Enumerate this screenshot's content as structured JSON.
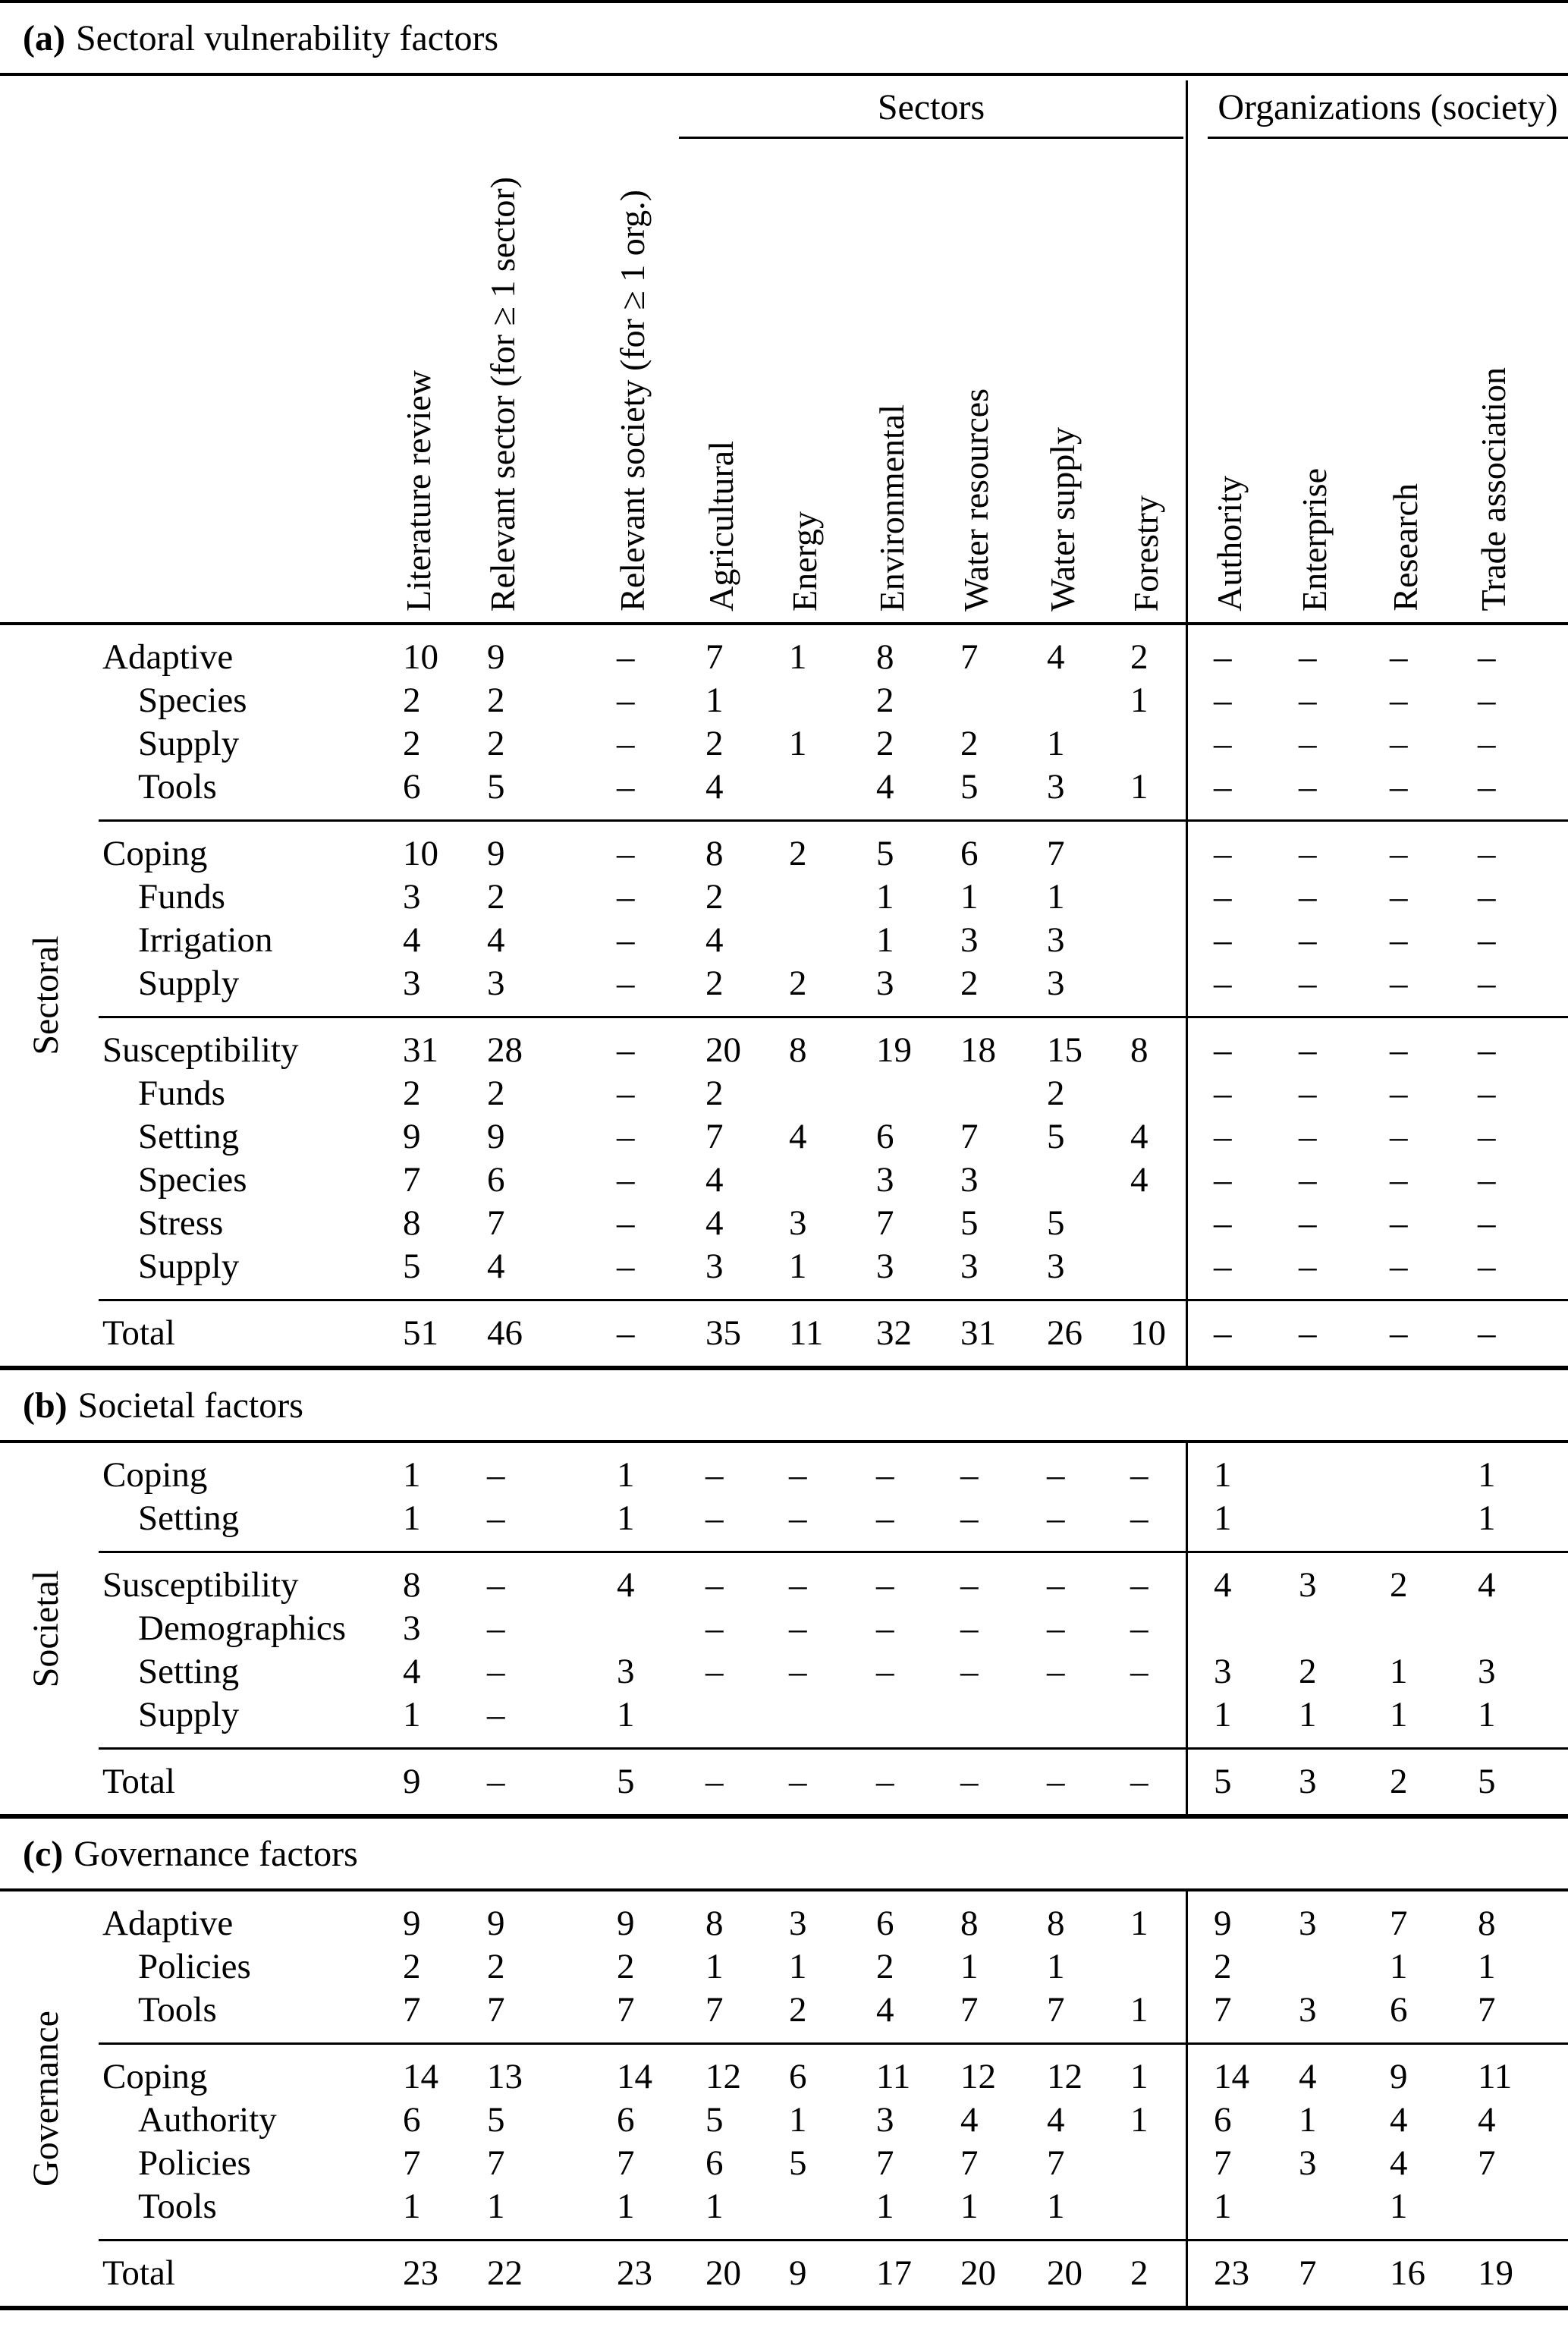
{
  "colors": {
    "text": "#000000",
    "background": "#ffffff",
    "rule": "#000000"
  },
  "table": {
    "group_headers": [
      {
        "label": "Sectors"
      },
      {
        "label": "Organizations (society)"
      }
    ],
    "column_headers": [
      "Literature review",
      "Relevant sector (for ≥ 1 sector)",
      "Relevant society (for ≥ 1 org.)",
      "Agricultural",
      "Energy",
      "Environmental",
      "Water resources",
      "Water supply",
      "Forestry",
      "Authority",
      "Enterprise",
      "Research",
      "Trade association"
    ],
    "sections": [
      {
        "title_prefix": "(a)",
        "title": "Sectoral vulnerability factors",
        "side_label": "Sectoral",
        "blocks": [
          {
            "rows": [
              {
                "label": "Adaptive",
                "indent": false,
                "cells": [
                  "10",
                  "9",
                  "–",
                  "7",
                  "1",
                  "8",
                  "7",
                  "4",
                  "2",
                  "–",
                  "–",
                  "–",
                  "–"
                ]
              },
              {
                "label": "Species",
                "indent": true,
                "cells": [
                  "2",
                  "2",
                  "–",
                  "1",
                  "",
                  "2",
                  "",
                  "",
                  "1",
                  "–",
                  "–",
                  "–",
                  "–"
                ]
              },
              {
                "label": "Supply",
                "indent": true,
                "cells": [
                  "2",
                  "2",
                  "–",
                  "2",
                  "1",
                  "2",
                  "2",
                  "1",
                  "",
                  "–",
                  "–",
                  "–",
                  "–"
                ]
              },
              {
                "label": "Tools",
                "indent": true,
                "cells": [
                  "6",
                  "5",
                  "–",
                  "4",
                  "",
                  "4",
                  "5",
                  "3",
                  "1",
                  "–",
                  "–",
                  "–",
                  "–"
                ]
              }
            ]
          },
          {
            "rows": [
              {
                "label": "Coping",
                "indent": false,
                "cells": [
                  "10",
                  "9",
                  "–",
                  "8",
                  "2",
                  "5",
                  "6",
                  "7",
                  "",
                  "–",
                  "–",
                  "–",
                  "–"
                ]
              },
              {
                "label": "Funds",
                "indent": true,
                "cells": [
                  "3",
                  "2",
                  "–",
                  "2",
                  "",
                  "1",
                  "1",
                  "1",
                  "",
                  "–",
                  "–",
                  "–",
                  "–"
                ]
              },
              {
                "label": "Irrigation",
                "indent": true,
                "cells": [
                  "4",
                  "4",
                  "–",
                  "4",
                  "",
                  "1",
                  "3",
                  "3",
                  "",
                  "–",
                  "–",
                  "–",
                  "–"
                ]
              },
              {
                "label": "Supply",
                "indent": true,
                "cells": [
                  "3",
                  "3",
                  "–",
                  "2",
                  "2",
                  "3",
                  "2",
                  "3",
                  "",
                  "–",
                  "–",
                  "–",
                  "–"
                ]
              }
            ]
          },
          {
            "rows": [
              {
                "label": "Susceptibility",
                "indent": false,
                "cells": [
                  "31",
                  "28",
                  "–",
                  "20",
                  "8",
                  "19",
                  "18",
                  "15",
                  "8",
                  "–",
                  "–",
                  "–",
                  "–"
                ]
              },
              {
                "label": "Funds",
                "indent": true,
                "cells": [
                  "2",
                  "2",
                  "–",
                  "2",
                  "",
                  "",
                  "",
                  "2",
                  "",
                  "–",
                  "–",
                  "–",
                  "–"
                ]
              },
              {
                "label": "Setting",
                "indent": true,
                "cells": [
                  "9",
                  "9",
                  "–",
                  "7",
                  "4",
                  "6",
                  "7",
                  "5",
                  "4",
                  "–",
                  "–",
                  "–",
                  "–"
                ]
              },
              {
                "label": "Species",
                "indent": true,
                "cells": [
                  "7",
                  "6",
                  "–",
                  "4",
                  "",
                  "3",
                  "3",
                  "",
                  "4",
                  "–",
                  "–",
                  "–",
                  "–"
                ]
              },
              {
                "label": "Stress",
                "indent": true,
                "cells": [
                  "8",
                  "7",
                  "–",
                  "4",
                  "3",
                  "7",
                  "5",
                  "5",
                  "",
                  "–",
                  "–",
                  "–",
                  "–"
                ]
              },
              {
                "label": "Supply",
                "indent": true,
                "cells": [
                  "5",
                  "4",
                  "–",
                  "3",
                  "1",
                  "3",
                  "3",
                  "3",
                  "",
                  "–",
                  "–",
                  "–",
                  "–"
                ]
              }
            ]
          }
        ],
        "total": {
          "label": "Total",
          "cells": [
            "51",
            "46",
            "–",
            "35",
            "11",
            "32",
            "31",
            "26",
            "10",
            "–",
            "–",
            "–",
            "–"
          ]
        }
      },
      {
        "title_prefix": "(b)",
        "title": "Societal factors",
        "side_label": "Societal",
        "blocks": [
          {
            "rows": [
              {
                "label": "Coping",
                "indent": false,
                "cells": [
                  "1",
                  "–",
                  "1",
                  "–",
                  "–",
                  "–",
                  "–",
                  "–",
                  "–",
                  "1",
                  "",
                  "",
                  "1"
                ]
              },
              {
                "label": "Setting",
                "indent": true,
                "cells": [
                  "1",
                  "–",
                  "1",
                  "–",
                  "–",
                  "–",
                  "–",
                  "–",
                  "–",
                  "1",
                  "",
                  "",
                  "1"
                ]
              }
            ]
          },
          {
            "rows": [
              {
                "label": "Susceptibility",
                "indent": false,
                "cells": [
                  "8",
                  "–",
                  "4",
                  "–",
                  "–",
                  "–",
                  "–",
                  "–",
                  "–",
                  "4",
                  "3",
                  "2",
                  "4"
                ]
              },
              {
                "label": "Demographics",
                "indent": true,
                "cells": [
                  "3",
                  "–",
                  "",
                  "–",
                  "–",
                  "–",
                  "–",
                  "–",
                  "–",
                  "",
                  "",
                  "",
                  ""
                ]
              },
              {
                "label": "Setting",
                "indent": true,
                "cells": [
                  "4",
                  "–",
                  "3",
                  "–",
                  "–",
                  "–",
                  "–",
                  "–",
                  "–",
                  "3",
                  "2",
                  "1",
                  "3"
                ]
              },
              {
                "label": "Supply",
                "indent": true,
                "cells": [
                  "1",
                  "–",
                  "1",
                  "",
                  "",
                  "",
                  "",
                  "",
                  "",
                  "1",
                  "1",
                  "1",
                  "1"
                ]
              }
            ]
          }
        ],
        "total": {
          "label": "Total",
          "cells": [
            "9",
            "–",
            "5",
            "–",
            "–",
            "–",
            "–",
            "–",
            "–",
            "5",
            "3",
            "2",
            "5"
          ]
        }
      },
      {
        "title_prefix": "(c)",
        "title": "Governance factors",
        "side_label": "Governance",
        "blocks": [
          {
            "rows": [
              {
                "label": "Adaptive",
                "indent": false,
                "cells": [
                  "9",
                  "9",
                  "9",
                  "8",
                  "3",
                  "6",
                  "8",
                  "8",
                  "1",
                  "9",
                  "3",
                  "7",
                  "8"
                ]
              },
              {
                "label": "Policies",
                "indent": true,
                "cells": [
                  "2",
                  "2",
                  "2",
                  "1",
                  "1",
                  "2",
                  "1",
                  "1",
                  "",
                  "2",
                  "",
                  "1",
                  "1"
                ]
              },
              {
                "label": "Tools",
                "indent": true,
                "cells": [
                  "7",
                  "7",
                  "7",
                  "7",
                  "2",
                  "4",
                  "7",
                  "7",
                  "1",
                  "7",
                  "3",
                  "6",
                  "7"
                ]
              }
            ]
          },
          {
            "rows": [
              {
                "label": "Coping",
                "indent": false,
                "cells": [
                  "14",
                  "13",
                  "14",
                  "12",
                  "6",
                  "11",
                  "12",
                  "12",
                  "1",
                  "14",
                  "4",
                  "9",
                  "11"
                ]
              },
              {
                "label": "Authority",
                "indent": true,
                "cells": [
                  "6",
                  "5",
                  "6",
                  "5",
                  "1",
                  "3",
                  "4",
                  "4",
                  "1",
                  "6",
                  "1",
                  "4",
                  "4"
                ]
              },
              {
                "label": "Policies",
                "indent": true,
                "cells": [
                  "7",
                  "7",
                  "7",
                  "6",
                  "5",
                  "7",
                  "7",
                  "7",
                  "",
                  "7",
                  "3",
                  "4",
                  "7"
                ]
              },
              {
                "label": "Tools",
                "indent": true,
                "cells": [
                  "1",
                  "1",
                  "1",
                  "1",
                  "",
                  "1",
                  "1",
                  "1",
                  "",
                  "1",
                  "",
                  "1",
                  ""
                ]
              }
            ]
          }
        ],
        "total": {
          "label": "Total",
          "cells": [
            "23",
            "22",
            "23",
            "20",
            "9",
            "17",
            "20",
            "20",
            "2",
            "23",
            "7",
            "16",
            "19"
          ]
        }
      }
    ]
  }
}
